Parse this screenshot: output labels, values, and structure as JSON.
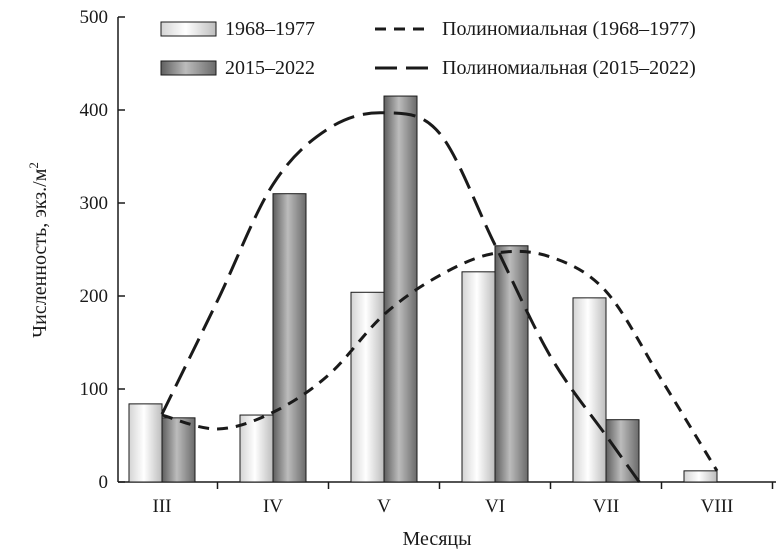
{
  "chart_data": {
    "type": "bar",
    "categories": [
      "III",
      "IV",
      "V",
      "VI",
      "VII",
      "VIII"
    ],
    "series": [
      {
        "name": "1968–1977",
        "values": [
          84,
          72,
          204,
          226,
          198,
          12
        ],
        "style": "light"
      },
      {
        "name": "2015–2022",
        "values": [
          69,
          310,
          415,
          254,
          67,
          0
        ],
        "style": "dark"
      }
    ],
    "trendlines": [
      {
        "name": "Полиномиальная (1968–1977)",
        "series": "1968–1977",
        "dash": "short",
        "points": [
          [
            0,
            72
          ],
          [
            0.5,
            57
          ],
          [
            1,
            75
          ],
          [
            1.5,
            115
          ],
          [
            2,
            180
          ],
          [
            2.5,
            222
          ],
          [
            3,
            246
          ],
          [
            3.5,
            242
          ],
          [
            4,
            205
          ],
          [
            4.5,
            110
          ],
          [
            5,
            12
          ]
        ]
      },
      {
        "name": "Полиномиальная (2015–2022)",
        "series": "2015–2022",
        "dash": "long",
        "points": [
          [
            0,
            73
          ],
          [
            0.5,
            195
          ],
          [
            1,
            320
          ],
          [
            1.5,
            380
          ],
          [
            2,
            397
          ],
          [
            2.5,
            375
          ],
          [
            3,
            255
          ],
          [
            3.5,
            135
          ],
          [
            4,
            50
          ],
          [
            4.3,
            0
          ]
        ]
      }
    ],
    "title": "",
    "xlabel": "Месяцы",
    "ylabel": "Численность, экз./м",
    "ylabel_superscript": "2",
    "ylim": [
      0,
      500
    ],
    "yticks": [
      0,
      100,
      200,
      300,
      400,
      500
    ],
    "grid": false,
    "legend_position": "top"
  },
  "colors": {
    "light_bar": "#f2f2f2",
    "dark_bar": "#8e8e8e",
    "line": "#1a1a1a"
  }
}
